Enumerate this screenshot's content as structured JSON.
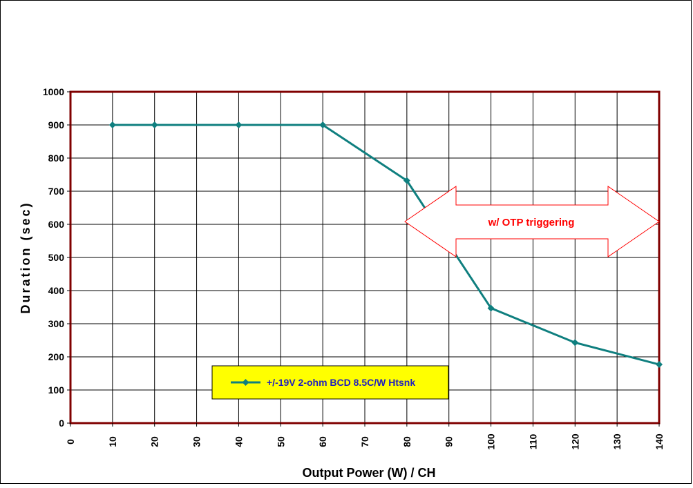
{
  "chart_data": {
    "type": "line",
    "title": "",
    "xlabel": "Output Power (W) / CH",
    "ylabel": "Duration (sec)",
    "x_ticks": [
      "0",
      "10",
      "20",
      "30",
      "40",
      "50",
      "60",
      "70",
      "80",
      "90",
      "100",
      "110",
      "120",
      "130",
      "140"
    ],
    "y_ticks": [
      "0",
      "100",
      "200",
      "300",
      "400",
      "500",
      "600",
      "700",
      "800",
      "900",
      "1000"
    ],
    "ylim": [
      0,
      1000
    ],
    "grid": true,
    "legend_position": "bottom-left",
    "series": [
      {
        "name": "+/-19V  2-ohm BCD 8.5C/W Htsnk",
        "color": "#0f7f7f",
        "marker": "diamond",
        "x": [
          10,
          20,
          40,
          60,
          80,
          100,
          120,
          140
        ],
        "y": [
          900,
          900,
          900,
          900,
          732,
          347,
          243,
          177
        ]
      }
    ],
    "annotation": {
      "text": "w/ OTP triggering",
      "shape": "double-arrow",
      "color": "#ff0000"
    },
    "colors": {
      "plot_border": "#800000",
      "grid": "#000000",
      "legend_bg": "#ffff00"
    }
  }
}
